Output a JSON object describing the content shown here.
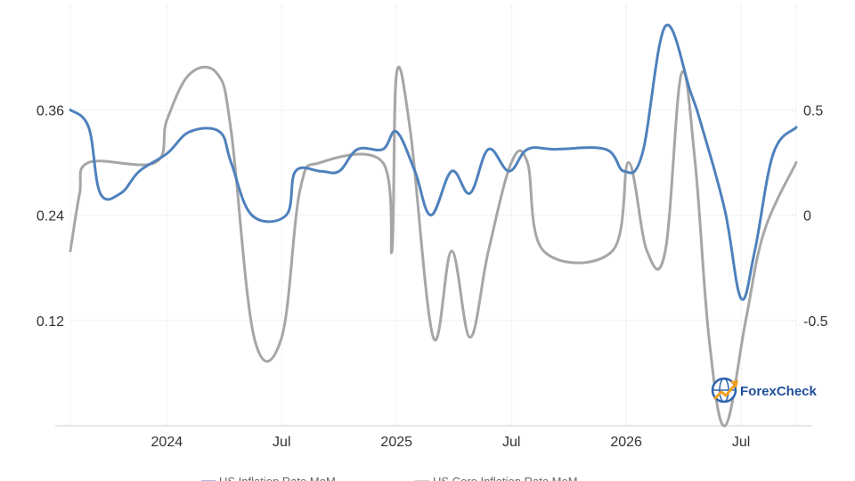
{
  "chart_data": {
    "type": "line",
    "title": "",
    "x_tick_labels": [
      "2024",
      "Jul",
      "2025",
      "Jul",
      "2026",
      "Jul"
    ],
    "y_left_ticks": [
      "0.36",
      "0.24",
      "0.12"
    ],
    "y_right_ticks": [
      "0.5",
      "0",
      "-0.5"
    ],
    "y_left_range": [
      0.0,
      0.48
    ],
    "y_right_range": [
      -1.0,
      1.0
    ],
    "grid": true,
    "legend_position": "bottom",
    "series": [
      {
        "name": "US Inflation Rate MoM",
        "axis": "left",
        "color": "#4f81bd",
        "points": [
          [
            2023.58,
            0.36
          ],
          [
            2023.66,
            0.34
          ],
          [
            2023.71,
            0.265
          ],
          [
            2023.8,
            0.265
          ],
          [
            2023.88,
            0.29
          ],
          [
            2024.0,
            0.31
          ],
          [
            2024.1,
            0.335
          ],
          [
            2024.23,
            0.335
          ],
          [
            2024.28,
            0.3
          ],
          [
            2024.37,
            0.24
          ],
          [
            2024.52,
            0.24
          ],
          [
            2024.56,
            0.29
          ],
          [
            2024.67,
            0.29
          ],
          [
            2024.75,
            0.29
          ],
          [
            2024.83,
            0.315
          ],
          [
            2024.94,
            0.315
          ],
          [
            2025.0,
            0.335
          ],
          [
            2025.08,
            0.29
          ],
          [
            2025.15,
            0.24
          ],
          [
            2025.24,
            0.29
          ],
          [
            2025.32,
            0.265
          ],
          [
            2025.4,
            0.315
          ],
          [
            2025.49,
            0.29
          ],
          [
            2025.57,
            0.315
          ],
          [
            2025.69,
            0.315
          ],
          [
            2025.91,
            0.315
          ],
          [
            2025.99,
            0.29
          ],
          [
            2026.07,
            0.31
          ],
          [
            2026.17,
            0.455
          ],
          [
            2026.28,
            0.38
          ],
          [
            2026.33,
            0.34
          ],
          [
            2026.43,
            0.245
          ],
          [
            2026.5,
            0.145
          ],
          [
            2026.56,
            0.2
          ],
          [
            2026.64,
            0.31
          ],
          [
            2026.74,
            0.34
          ]
        ]
      },
      {
        "name": "US Core Inflation Rate MoM",
        "axis": "right",
        "color": "#a6a6a6",
        "points": [
          [
            2023.58,
            -0.17
          ],
          [
            2023.62,
            0.1
          ],
          [
            2023.66,
            0.25
          ],
          [
            2023.95,
            0.25
          ],
          [
            2024.0,
            0.45
          ],
          [
            2024.1,
            0.67
          ],
          [
            2024.22,
            0.67
          ],
          [
            2024.28,
            0.4
          ],
          [
            2024.38,
            -0.58
          ],
          [
            2024.5,
            -0.58
          ],
          [
            2024.58,
            0.12
          ],
          [
            2024.67,
            0.25
          ],
          [
            2024.94,
            0.25
          ],
          [
            2024.98,
            -0.17
          ],
          [
            2025.0,
            0.67
          ],
          [
            2025.06,
            0.4
          ],
          [
            2025.16,
            -0.58
          ],
          [
            2025.24,
            -0.17
          ],
          [
            2025.32,
            -0.58
          ],
          [
            2025.4,
            -0.17
          ],
          [
            2025.5,
            0.25
          ],
          [
            2025.57,
            0.25
          ],
          [
            2025.64,
            -0.17
          ],
          [
            2025.94,
            -0.17
          ],
          [
            2026.01,
            0.25
          ],
          [
            2026.09,
            -0.17
          ],
          [
            2026.17,
            -0.17
          ],
          [
            2026.24,
            0.67
          ],
          [
            2026.3,
            0.25
          ],
          [
            2026.36,
            -0.58
          ],
          [
            2026.43,
            -1.0
          ],
          [
            2026.52,
            -0.5
          ],
          [
            2026.6,
            -0.08
          ],
          [
            2026.74,
            0.25
          ]
        ]
      }
    ],
    "watermark": "ForexCheck"
  }
}
